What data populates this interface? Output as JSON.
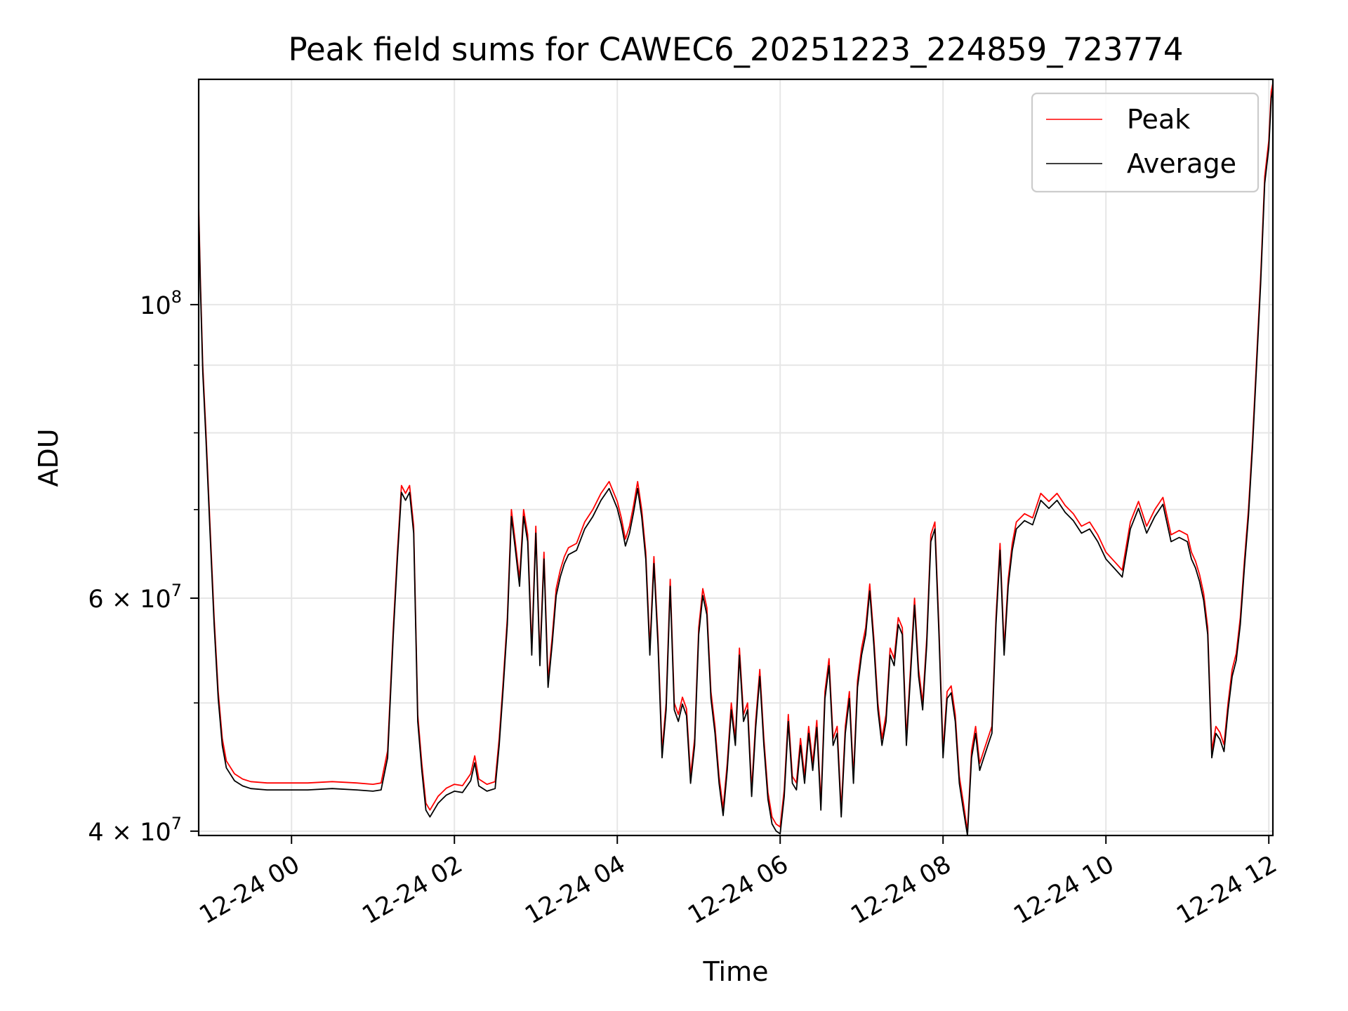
{
  "chart_data": {
    "type": "line",
    "title": "Peak field sums for CAWEC6_20251223_224859_723774",
    "xlabel": "Time",
    "ylabel": "ADU",
    "yscale": "log",
    "grid": true,
    "legend_position": "top-right",
    "xlim_hours": [
      -1.14,
      12.05
    ],
    "ylim": [
      39700000,
      148000000
    ],
    "x_ticks": [
      {
        "hour": 0,
        "label": "12-24 00"
      },
      {
        "hour": 2,
        "label": "12-24 02"
      },
      {
        "hour": 4,
        "label": "12-24 04"
      },
      {
        "hour": 6,
        "label": "12-24 06"
      },
      {
        "hour": 8,
        "label": "12-24 08"
      },
      {
        "hour": 10,
        "label": "12-24 10"
      },
      {
        "hour": 12,
        "label": "12-24 12"
      }
    ],
    "y_major_ticks": [
      {
        "value": 100000000,
        "base": "10",
        "exp": "8"
      },
      {
        "value": 60000000,
        "base": "6 × 10",
        "exp": "7"
      },
      {
        "value": 40000000,
        "base": "4 × 10",
        "exp": "7"
      }
    ],
    "y_minor_gridlines": [
      50000000,
      70000000,
      80000000,
      90000000
    ],
    "series": [
      {
        "name": "Peak",
        "color": "#ff0000"
      },
      {
        "name": "Average",
        "color": "#000000"
      }
    ],
    "x_hours": [
      -1.14,
      -1.12,
      -1.09,
      -1.05,
      -1.0,
      -0.95,
      -0.9,
      -0.85,
      -0.8,
      -0.7,
      -0.6,
      -0.5,
      -0.3,
      -0.1,
      0.2,
      0.5,
      0.8,
      1.0,
      1.1,
      1.18,
      1.25,
      1.3,
      1.35,
      1.4,
      1.45,
      1.5,
      1.55,
      1.6,
      1.65,
      1.7,
      1.75,
      1.8,
      1.85,
      1.9,
      2.0,
      2.1,
      2.2,
      2.25,
      2.3,
      2.4,
      2.5,
      2.55,
      2.6,
      2.65,
      2.7,
      2.75,
      2.8,
      2.85,
      2.9,
      2.95,
      3.0,
      3.05,
      3.1,
      3.15,
      3.2,
      3.25,
      3.3,
      3.35,
      3.4,
      3.5,
      3.6,
      3.7,
      3.8,
      3.9,
      4.0,
      4.05,
      4.1,
      4.15,
      4.2,
      4.25,
      4.3,
      4.35,
      4.4,
      4.45,
      4.5,
      4.55,
      4.6,
      4.65,
      4.7,
      4.75,
      4.8,
      4.85,
      4.9,
      4.95,
      5.0,
      5.05,
      5.1,
      5.15,
      5.2,
      5.25,
      5.3,
      5.35,
      5.4,
      5.45,
      5.5,
      5.55,
      5.6,
      5.65,
      5.7,
      5.75,
      5.8,
      5.85,
      5.9,
      5.95,
      6.0,
      6.05,
      6.1,
      6.15,
      6.2,
      6.25,
      6.3,
      6.35,
      6.4,
      6.45,
      6.5,
      6.55,
      6.6,
      6.65,
      6.7,
      6.75,
      6.8,
      6.85,
      6.9,
      6.95,
      7.0,
      7.05,
      7.1,
      7.15,
      7.2,
      7.25,
      7.3,
      7.35,
      7.4,
      7.45,
      7.5,
      7.55,
      7.6,
      7.65,
      7.7,
      7.75,
      7.8,
      7.85,
      7.9,
      7.95,
      8.0,
      8.05,
      8.1,
      8.15,
      8.2,
      8.25,
      8.3,
      8.35,
      8.4,
      8.45,
      8.5,
      8.55,
      8.6,
      8.65,
      8.7,
      8.75,
      8.8,
      8.85,
      8.9,
      9.0,
      9.1,
      9.2,
      9.3,
      9.4,
      9.5,
      9.6,
      9.7,
      9.8,
      9.9,
      10.0,
      10.1,
      10.2,
      10.3,
      10.4,
      10.5,
      10.6,
      10.7,
      10.8,
      10.9,
      11.0,
      11.05,
      11.1,
      11.15,
      11.2,
      11.25,
      11.3,
      11.35,
      11.4,
      11.45,
      11.5,
      11.55,
      11.6,
      11.65,
      11.7,
      11.75,
      11.8,
      11.85,
      11.9,
      11.95,
      12.0,
      12.03,
      12.05
    ],
    "peak_values": [
      119000000,
      105000000,
      90000000,
      80000000,
      68000000,
      58000000,
      51000000,
      47000000,
      45200000,
      44200000,
      43800000,
      43600000,
      43500000,
      43500000,
      43500000,
      43600000,
      43500000,
      43400000,
      43500000,
      46000000,
      57000000,
      65000000,
      73000000,
      72000000,
      73000000,
      68000000,
      49000000,
      45000000,
      42000000,
      41500000,
      42000000,
      42500000,
      42800000,
      43100000,
      43400000,
      43300000,
      44200000,
      45600000,
      43800000,
      43400000,
      43600000,
      47000000,
      52000000,
      58000000,
      70000000,
      66000000,
      62000000,
      70000000,
      67000000,
      55000000,
      68000000,
      54000000,
      65000000,
      52000000,
      56000000,
      61000000,
      63000000,
      64500000,
      65500000,
      66000000,
      68500000,
      70000000,
      72000000,
      73500000,
      71000000,
      69000000,
      66500000,
      68000000,
      70500000,
      73500000,
      70000000,
      65000000,
      55000000,
      64500000,
      56000000,
      46000000,
      50000000,
      62000000,
      50000000,
      49000000,
      50500000,
      49500000,
      44000000,
      47000000,
      57000000,
      61000000,
      59000000,
      51000000,
      48000000,
      44000000,
      41600000,
      45000000,
      50000000,
      47000000,
      55000000,
      49000000,
      50000000,
      43000000,
      48500000,
      53000000,
      47000000,
      42800000,
      41000000,
      40500000,
      40300000,
      43000000,
      49000000,
      44000000,
      43500000,
      47000000,
      44000000,
      48000000,
      45000000,
      48500000,
      42000000,
      51000000,
      54000000,
      47000000,
      48000000,
      41500000,
      48000000,
      51000000,
      44000000,
      52000000,
      55000000,
      57000000,
      61500000,
      56000000,
      50000000,
      47000000,
      49000000,
      55000000,
      54000000,
      58000000,
      57000000,
      47000000,
      53000000,
      60000000,
      53000000,
      50000000,
      56000000,
      67000000,
      68500000,
      57000000,
      46000000,
      51000000,
      51500000,
      49000000,
      44000000,
      42000000,
      40000000,
      46000000,
      48000000,
      45000000,
      46000000,
      47000000,
      48000000,
      58000000,
      66000000,
      55000000,
      62000000,
      66000000,
      68500000,
      69500000,
      69000000,
      72000000,
      71000000,
      72000000,
      70500000,
      69500000,
      68000000,
      68500000,
      67000000,
      65000000,
      64000000,
      63000000,
      68500000,
      71000000,
      68000000,
      70000000,
      71500000,
      67000000,
      67500000,
      67000000,
      65000000,
      64000000,
      62500000,
      60500000,
      57000000,
      46000000,
      48000000,
      47500000,
      46500000,
      50000000,
      53000000,
      54500000,
      58000000,
      64000000,
      70000000,
      79000000,
      91000000,
      105000000,
      125000000,
      133000000,
      145000000,
      147000000
    ]
  }
}
